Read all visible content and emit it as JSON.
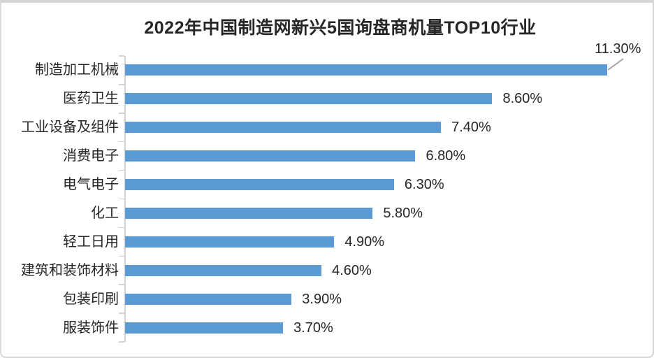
{
  "chart_data": {
    "type": "bar",
    "orientation": "horizontal",
    "title": "2022年中国制造网新兴5国询盘商机量TOP10行业",
    "categories": [
      "制造加工机械",
      "医药卫生",
      "工业设备及组件",
      "消费电子",
      "电气电子",
      "化工",
      "轻工日用",
      "建筑和装饰材料",
      "包装印刷",
      "服装饰件"
    ],
    "values": [
      11.3,
      8.6,
      7.4,
      6.8,
      6.3,
      5.8,
      4.9,
      4.6,
      3.9,
      3.7
    ],
    "value_labels": [
      "11.30%",
      "8.60%",
      "7.40%",
      "6.80%",
      "6.30%",
      "5.80%",
      "4.90%",
      "4.60%",
      "3.90%",
      "3.70%"
    ],
    "xlabel": "",
    "ylabel": "",
    "xlim": [
      0,
      12.4
    ],
    "grid": false,
    "legend": false,
    "x_axis_labels_visible": false,
    "bar_color": "#5B9BD5",
    "axis_color": "#D3D3D3",
    "label_color": "#262626",
    "title_color": "#262626",
    "leader_line_color": "#A6A6A6",
    "first_bar_has_callout_label": true
  }
}
